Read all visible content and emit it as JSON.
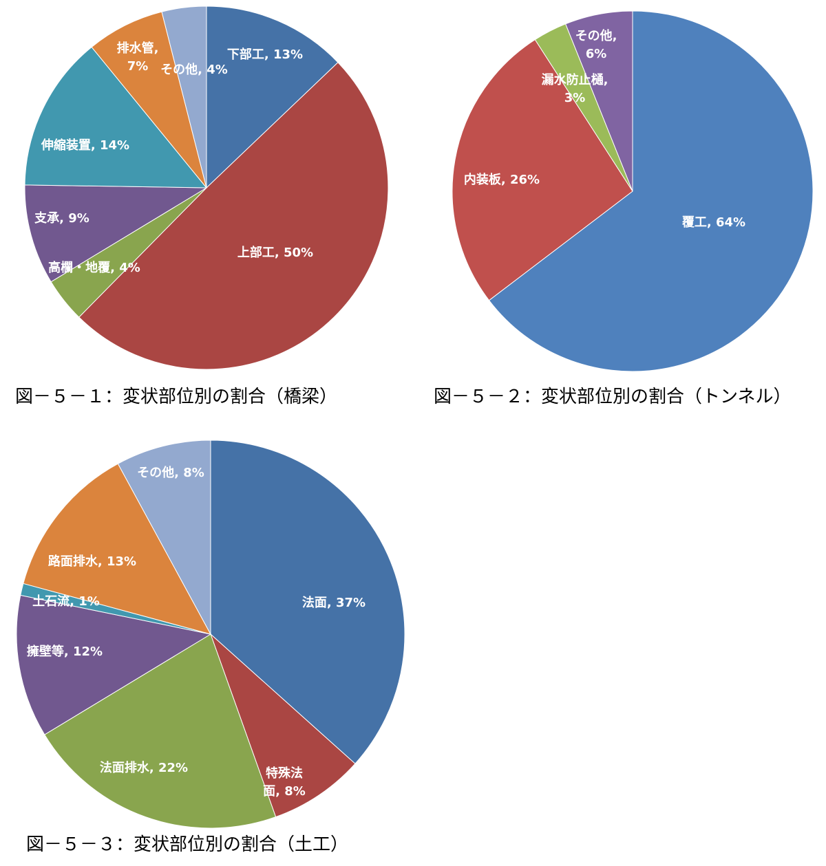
{
  "chart_data": [
    {
      "type": "pie",
      "caption": "図－５－１：変状部位別の割合（橋梁）",
      "slices": [
        {
          "label": "下部工, 13%",
          "value": 13,
          "color": "#4572A7"
        },
        {
          "label": "上部工, 50%",
          "value": 50,
          "color": "#AA4643"
        },
        {
          "label": "高欄・地覆, 4%",
          "value": 4,
          "color": "#89A54E"
        },
        {
          "label": "支承, 9%",
          "value": 9,
          "color": "#71588F"
        },
        {
          "label": "伸縮装置, 14%",
          "value": 14,
          "color": "#4198AF"
        },
        {
          "label": "排水管, 7%",
          "value": 7,
          "color": "#DB843D"
        },
        {
          "label": "その他, 4%",
          "value": 4,
          "color": "#93A9CF"
        }
      ]
    },
    {
      "type": "pie",
      "caption": "図－５－２：変状部位別の割合（トンネル）",
      "slices": [
        {
          "label": "覆工, 64%",
          "value": 64,
          "color": "#4F81BD"
        },
        {
          "label": "内装板, 26%",
          "value": 26,
          "color": "#C0504D"
        },
        {
          "label": "漏水防止樋, 3%",
          "value": 3,
          "color": "#9BBB59"
        },
        {
          "label": "その他, 6%",
          "value": 6,
          "color": "#8064A2"
        }
      ]
    },
    {
      "type": "pie",
      "caption": "図－５－３：変状部位別の割合（土工）",
      "slices": [
        {
          "label": "法面, 37%",
          "value": 37,
          "color": "#4572A7"
        },
        {
          "label": "特殊法面, 8%",
          "value": 8,
          "color": "#AA4643"
        },
        {
          "label": "法面排水, 22%",
          "value": 22,
          "color": "#89A54E"
        },
        {
          "label": "擁壁等, 12%",
          "value": 12,
          "color": "#71588F"
        },
        {
          "label": "土石流, 1%",
          "value": 1,
          "color": "#4198AF"
        },
        {
          "label": "路面排水, 13%",
          "value": 13,
          "color": "#DB843D"
        },
        {
          "label": "その他, 8%",
          "value": 8,
          "color": "#93A9CF"
        }
      ]
    }
  ]
}
